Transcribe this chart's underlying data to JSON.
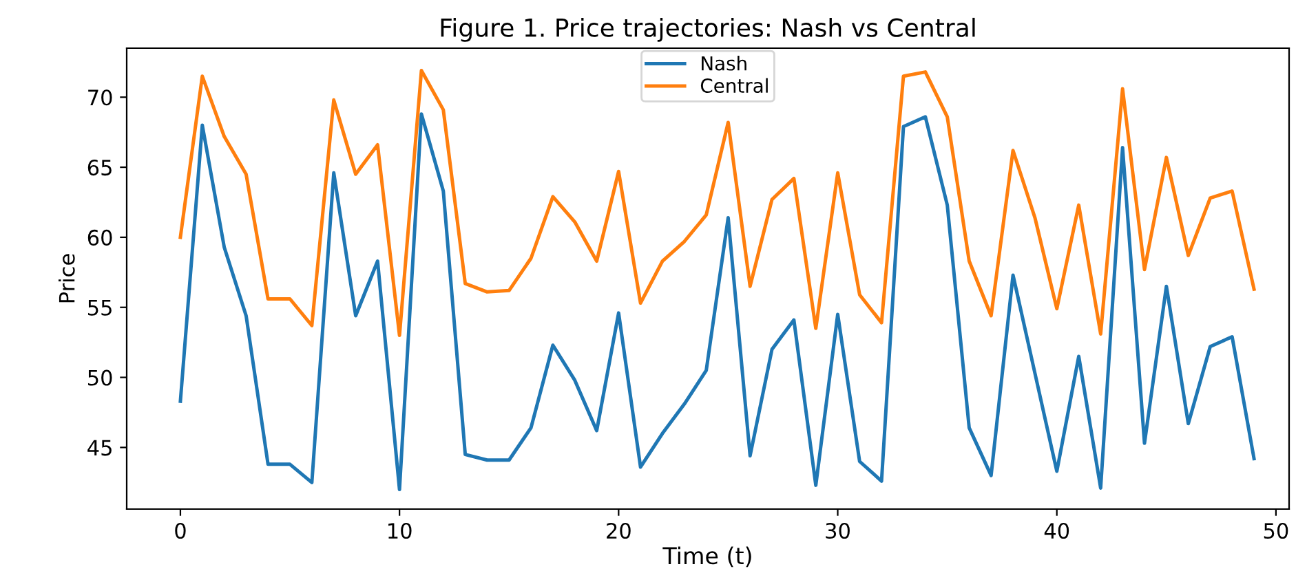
{
  "chart_data": {
    "type": "line",
    "title": "Figure 1. Price trajectories: Nash vs Central",
    "xlabel": "Time (t)",
    "ylabel": "Price",
    "x": [
      0,
      1,
      2,
      3,
      4,
      5,
      6,
      7,
      8,
      9,
      10,
      11,
      12,
      13,
      14,
      15,
      16,
      17,
      18,
      19,
      20,
      21,
      22,
      23,
      24,
      25,
      26,
      27,
      28,
      29,
      30,
      31,
      32,
      33,
      34,
      35,
      36,
      37,
      38,
      39,
      40,
      41,
      42,
      43,
      44,
      45,
      46,
      47,
      48,
      49
    ],
    "series": [
      {
        "name": "Nash",
        "color": "#1f77b4",
        "values": [
          48.3,
          68.0,
          59.3,
          54.4,
          43.8,
          43.8,
          42.5,
          64.6,
          54.4,
          58.3,
          42.0,
          68.8,
          63.3,
          44.5,
          44.1,
          44.1,
          46.4,
          52.3,
          49.8,
          46.2,
          54.6,
          43.6,
          46.0,
          48.1,
          50.5,
          61.4,
          44.4,
          52.0,
          54.1,
          42.3,
          54.5,
          44.0,
          42.6,
          67.9,
          68.6,
          62.3,
          46.4,
          43.0,
          57.3,
          50.3,
          43.3,
          51.5,
          42.1,
          66.4,
          45.3,
          56.5,
          46.7,
          52.2,
          52.9,
          44.2
        ]
      },
      {
        "name": "Central",
        "color": "#ff7f0e",
        "values": [
          60.0,
          71.5,
          67.2,
          64.5,
          55.6,
          55.6,
          53.7,
          69.8,
          64.5,
          66.6,
          53.0,
          71.9,
          69.1,
          56.7,
          56.1,
          56.2,
          58.5,
          62.9,
          61.1,
          58.3,
          64.7,
          55.3,
          58.3,
          59.7,
          61.6,
          68.2,
          56.5,
          62.7,
          64.2,
          53.5,
          64.6,
          55.9,
          53.9,
          71.5,
          71.8,
          68.6,
          58.3,
          54.4,
          66.2,
          61.4,
          54.9,
          62.3,
          53.1,
          70.6,
          57.7,
          65.7,
          58.7,
          62.8,
          63.3,
          56.3
        ]
      }
    ],
    "xlim": [
      -2.45,
      50.6
    ],
    "xticks": [
      0,
      10,
      20,
      30,
      40,
      50
    ],
    "ylim": [
      40.6,
      73.5
    ],
    "yticks": [
      45,
      50,
      55,
      60,
      65,
      70
    ],
    "legend": "top center",
    "grid": false,
    "marker": "none",
    "line_style": "solid"
  }
}
